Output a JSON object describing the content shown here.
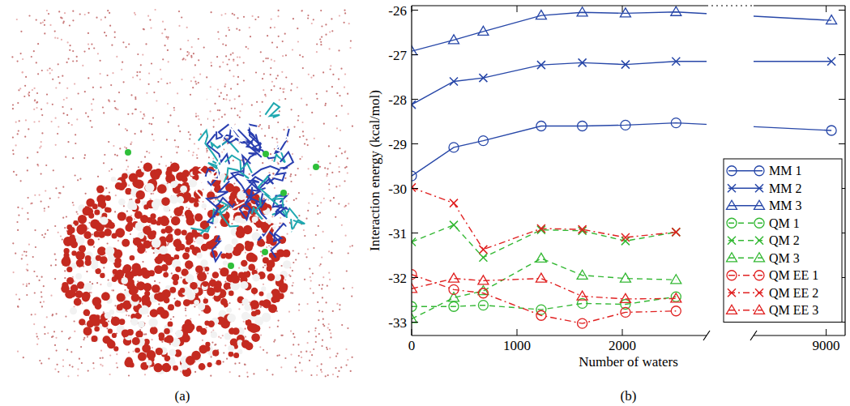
{
  "panels": {
    "a": {
      "label": "(a)"
    }
  },
  "chart_data": {
    "type": "line",
    "label": "(b)",
    "x_label": "Number of waters",
    "y_label": "Interaction energy (kcal/mol)",
    "x": [
      0,
      400,
      680,
      1230,
      1620,
      2030,
      2510,
      9050
    ],
    "xlim": [
      [
        0,
        2800
      ],
      [
        8310,
        9180
      ]
    ],
    "xticks": [
      0,
      1000,
      2000,
      9000
    ],
    "ylim": [
      -33.3,
      -25.9
    ],
    "yticks": [
      -33,
      -32,
      -31,
      -30,
      -29,
      -28,
      -27,
      -26
    ],
    "legend": "right",
    "grid": false,
    "series": [
      {
        "name": "MM 1",
        "color": "#2747a8",
        "marker": "circle",
        "line_style": "solid",
        "values": [
          -29.72,
          -29.08,
          -28.93,
          -28.6,
          -28.6,
          -28.58,
          -28.53,
          -28.7
        ]
      },
      {
        "name": "MM 2",
        "color": "#2747a8",
        "marker": "x",
        "line_style": "solid",
        "values": [
          -28.12,
          -27.6,
          -27.52,
          -27.23,
          -27.18,
          -27.22,
          -27.15,
          -27.15
        ]
      },
      {
        "name": "MM 3",
        "color": "#2747a8",
        "marker": "triangle",
        "line_style": "solid",
        "values": [
          -26.92,
          -26.67,
          -26.48,
          -26.12,
          -26.05,
          -26.07,
          -26.04,
          -26.23
        ]
      },
      {
        "name": "QM 1",
        "color": "#33b833",
        "marker": "circle",
        "line_style": "dashed",
        "values": [
          -32.65,
          -32.65,
          -32.62,
          -32.72,
          -32.58,
          -32.6,
          -32.43,
          null
        ]
      },
      {
        "name": "QM 2",
        "color": "#33b833",
        "marker": "x",
        "line_style": "dashed",
        "values": [
          -31.2,
          -30.82,
          -31.55,
          -30.93,
          -30.95,
          -31.18,
          -30.98,
          null
        ]
      },
      {
        "name": "QM 3",
        "color": "#33b833",
        "marker": "triangle",
        "line_style": "dashed",
        "values": [
          -32.93,
          -32.45,
          -32.3,
          -31.57,
          -31.95,
          -32.02,
          -32.05,
          null
        ]
      },
      {
        "name": "QM EE 1",
        "color": "#e02020",
        "marker": "circle",
        "line_style": "dashdot",
        "values": [
          -31.93,
          -32.27,
          -32.35,
          -32.85,
          -33.03,
          -32.78,
          -32.75,
          null
        ]
      },
      {
        "name": "QM EE 2",
        "color": "#e02020",
        "marker": "x",
        "line_style": "dashdot",
        "values": [
          -29.98,
          -30.33,
          -31.37,
          -30.9,
          -30.92,
          -31.1,
          -30.98,
          null
        ]
      },
      {
        "name": "QM EE 3",
        "color": "#e02020",
        "marker": "triangle",
        "line_style": "dashdot",
        "values": [
          -32.25,
          -32.02,
          -32.07,
          -32.02,
          -32.42,
          -32.48,
          -32.47,
          null
        ]
      }
    ]
  }
}
